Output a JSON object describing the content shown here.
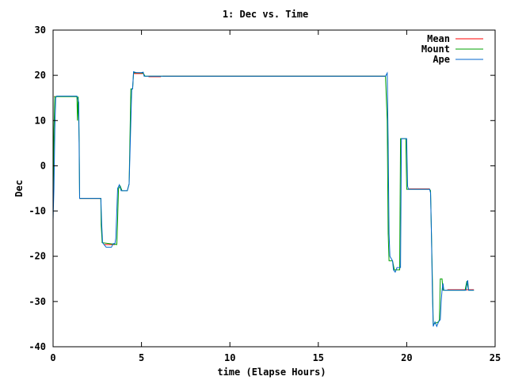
{
  "chart_data": {
    "type": "line",
    "title": "1: Dec vs. Time",
    "xlabel": "time (Elapse Hours)",
    "ylabel": "Dec",
    "xlim": [
      0,
      25
    ],
    "ylim": [
      -40,
      30
    ],
    "xticks": [
      0,
      5,
      10,
      15,
      20,
      25
    ],
    "yticks": [
      -40,
      -30,
      -20,
      -10,
      0,
      10,
      20,
      30
    ],
    "grid": false,
    "legend_position": "top-right",
    "series": [
      {
        "name": "Mean",
        "color": "#ff0000",
        "segments": [
          [
            [
              0.05,
              15.3
            ],
            [
              1.3,
              15.3
            ]
          ],
          [
            [
              1.5,
              -7.2
            ],
            [
              2.7,
              -7.2
            ]
          ],
          [
            [
              2.9,
              -17.4
            ],
            [
              3.5,
              -17.4
            ]
          ],
          [
            [
              4.55,
              20.4
            ],
            [
              5.1,
              20.4
            ]
          ],
          [
            [
              5.4,
              19.7
            ],
            [
              6.1,
              19.7
            ]
          ],
          [
            [
              6.2,
              19.8
            ],
            [
              18.8,
              19.8
            ]
          ],
          [
            [
              20.1,
              -5.1
            ],
            [
              21.3,
              -5.1
            ]
          ],
          [
            [
              22.3,
              -27.4
            ],
            [
              23.8,
              -27.4
            ]
          ]
        ]
      },
      {
        "name": "Mount",
        "color": "#00a000",
        "points": [
          [
            0,
            -10
          ],
          [
            0.05,
            8
          ],
          [
            0.1,
            15.3
          ],
          [
            1.35,
            15.3
          ],
          [
            1.38,
            10
          ],
          [
            1.42,
            15.3
          ],
          [
            1.48,
            5
          ],
          [
            1.5,
            -7.2
          ],
          [
            2.7,
            -7.2
          ],
          [
            2.72,
            -13
          ],
          [
            2.78,
            -17
          ],
          [
            3.6,
            -17.4
          ],
          [
            3.62,
            -16
          ],
          [
            3.7,
            -5
          ],
          [
            3.8,
            -4.5
          ],
          [
            3.9,
            -5.5
          ],
          [
            4.2,
            -5.5
          ],
          [
            4.3,
            -4
          ],
          [
            4.4,
            17
          ],
          [
            4.5,
            17
          ],
          [
            4.55,
            20.6
          ],
          [
            5.1,
            20.5
          ],
          [
            5.2,
            19.8
          ],
          [
            18.8,
            19.8
          ],
          [
            18.9,
            10
          ],
          [
            18.95,
            -15
          ],
          [
            19.0,
            -21
          ],
          [
            19.2,
            -21
          ],
          [
            19.3,
            -23
          ],
          [
            19.6,
            -23
          ],
          [
            19.65,
            6
          ],
          [
            19.95,
            6
          ],
          [
            20.0,
            -5.2
          ],
          [
            21.3,
            -5.2
          ],
          [
            21.35,
            -5.5
          ],
          [
            21.45,
            -25
          ],
          [
            21.5,
            -35
          ],
          [
            21.8,
            -34.5
          ],
          [
            21.85,
            -34
          ],
          [
            21.9,
            -25
          ],
          [
            22.0,
            -25
          ],
          [
            22.05,
            -27.5
          ],
          [
            23.3,
            -27.5
          ],
          [
            23.4,
            -25.5
          ],
          [
            23.5,
            -27.5
          ],
          [
            23.8,
            -27.5
          ]
        ]
      },
      {
        "name": "Ape",
        "color": "#0066cc",
        "points": [
          [
            0,
            -12
          ],
          [
            0.05,
            -5
          ],
          [
            0.1,
            8
          ],
          [
            0.15,
            15
          ],
          [
            0.2,
            15.4
          ],
          [
            1.35,
            15.4
          ],
          [
            1.45,
            14
          ],
          [
            1.5,
            -7.2
          ],
          [
            2.7,
            -7.2
          ],
          [
            2.75,
            -13
          ],
          [
            2.8,
            -17
          ],
          [
            2.9,
            -17.5
          ],
          [
            3.0,
            -18
          ],
          [
            3.3,
            -18
          ],
          [
            3.4,
            -17.2
          ],
          [
            3.5,
            -17.2
          ],
          [
            3.55,
            -16
          ],
          [
            3.65,
            -5
          ],
          [
            3.75,
            -4.2
          ],
          [
            3.85,
            -5.5
          ],
          [
            4.2,
            -5.5
          ],
          [
            4.3,
            -4
          ],
          [
            4.4,
            10
          ],
          [
            4.45,
            17
          ],
          [
            4.5,
            17
          ],
          [
            4.55,
            20.8
          ],
          [
            4.7,
            20.6
          ],
          [
            5.0,
            20.6
          ],
          [
            5.1,
            20.7
          ],
          [
            5.15,
            19.8
          ],
          [
            18.8,
            19.8
          ],
          [
            18.9,
            20.5
          ],
          [
            18.95,
            5
          ],
          [
            19.0,
            -15
          ],
          [
            19.05,
            -20
          ],
          [
            19.2,
            -21
          ],
          [
            19.25,
            -23
          ],
          [
            19.35,
            -23.5
          ],
          [
            19.45,
            -22.5
          ],
          [
            19.65,
            -22.5
          ],
          [
            19.7,
            6
          ],
          [
            20.0,
            6
          ],
          [
            20.05,
            -4.5
          ],
          [
            20.1,
            -5.2
          ],
          [
            21.3,
            -5.2
          ],
          [
            21.35,
            -6
          ],
          [
            21.4,
            -15
          ],
          [
            21.45,
            -28
          ],
          [
            21.5,
            -35.5
          ],
          [
            21.6,
            -34.5
          ],
          [
            21.7,
            -35.5
          ],
          [
            21.8,
            -34.5
          ],
          [
            21.9,
            -34
          ],
          [
            21.95,
            -30
          ],
          [
            22.0,
            -27.5
          ],
          [
            22.05,
            -26
          ],
          [
            22.1,
            -27.5
          ],
          [
            23.35,
            -27.5
          ],
          [
            23.4,
            -26
          ],
          [
            23.45,
            -25.3
          ],
          [
            23.5,
            -27.5
          ],
          [
            23.8,
            -27.5
          ]
        ]
      }
    ]
  }
}
